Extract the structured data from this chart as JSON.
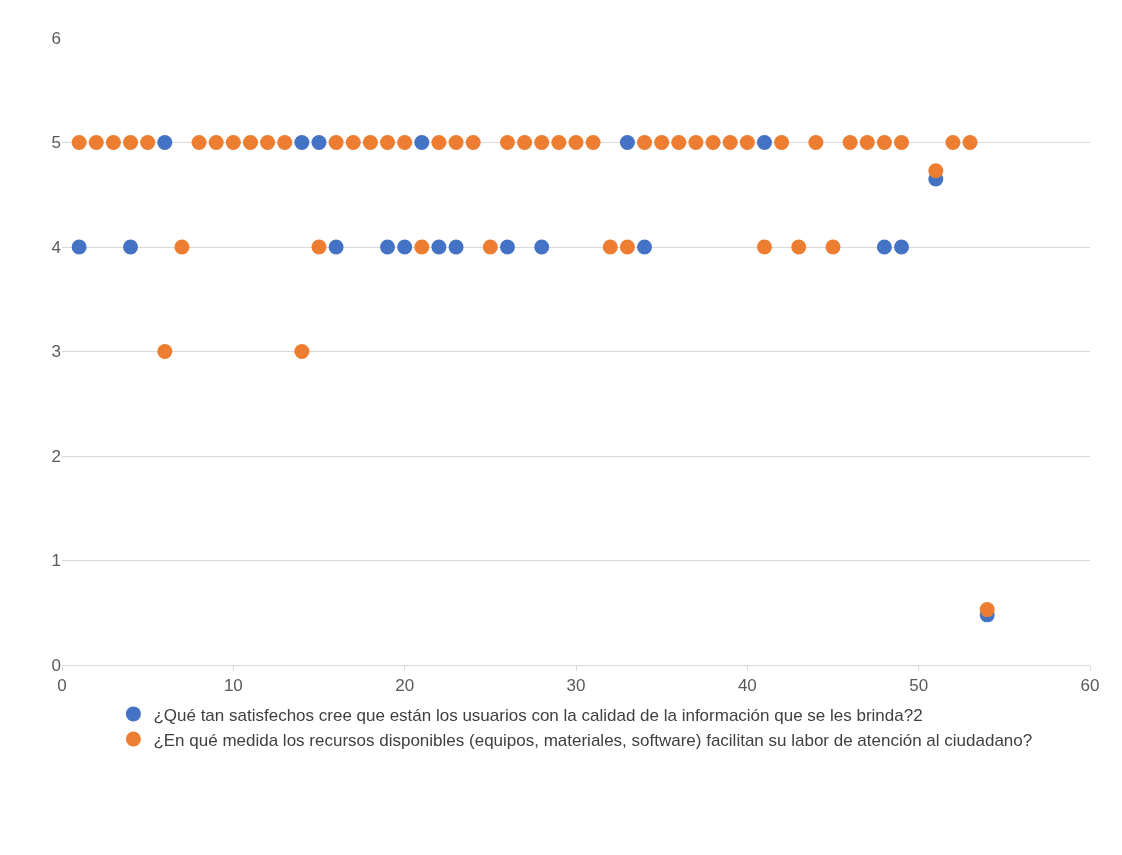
{
  "chart_data": {
    "type": "scatter",
    "x": [
      1,
      2,
      3,
      4,
      5,
      6,
      7,
      8,
      9,
      10,
      11,
      12,
      13,
      14,
      15,
      16,
      17,
      18,
      19,
      20,
      21,
      22,
      23,
      24,
      25,
      26,
      27,
      28,
      29,
      30,
      31,
      32,
      33,
      34,
      35,
      36,
      37,
      38,
      39,
      40,
      41,
      42,
      43,
      44,
      45,
      46,
      47,
      48,
      49,
      50,
      51,
      52,
      53,
      54
    ],
    "series": [
      {
        "name": "¿Qué tan satisfechos cree que están los usuarios con la calidad de la información que se les brinda?2",
        "color": "#4472c4",
        "values": [
          4,
          null,
          null,
          4,
          null,
          5,
          null,
          null,
          null,
          null,
          null,
          null,
          null,
          5,
          5,
          4,
          null,
          null,
          4,
          4,
          5,
          4,
          4,
          null,
          null,
          4,
          null,
          4,
          null,
          null,
          null,
          null,
          5,
          4,
          null,
          null,
          null,
          null,
          null,
          null,
          5,
          null,
          null,
          null,
          null,
          null,
          null,
          4,
          4,
          null,
          4.65,
          null,
          null,
          0.48
        ]
      },
      {
        "name": "¿En qué medida los recursos disponibles (equipos, materiales, software) facilitan su labor de atención al ciudadano?",
        "color": "#ed7d31",
        "values": [
          5,
          5,
          5,
          5,
          5,
          3,
          4,
          5,
          5,
          5,
          5,
          5,
          5,
          3,
          4,
          5,
          5,
          5,
          5,
          5,
          4,
          5,
          5,
          5,
          4,
          5,
          5,
          5,
          5,
          5,
          5,
          4,
          4,
          5,
          5,
          5,
          5,
          5,
          5,
          5,
          4,
          5,
          4,
          5,
          4,
          5,
          5,
          5,
          5,
          null,
          4.73,
          5,
          5,
          0.53
        ]
      }
    ],
    "xlim": [
      0,
      60
    ],
    "xticks": [
      0,
      10,
      20,
      30,
      40,
      50,
      60
    ],
    "ylim": [
      0,
      6
    ],
    "yticks": [
      0,
      1,
      2,
      3,
      4,
      5,
      6
    ],
    "grid": "y",
    "legend": "bottom",
    "marker": "circle"
  }
}
